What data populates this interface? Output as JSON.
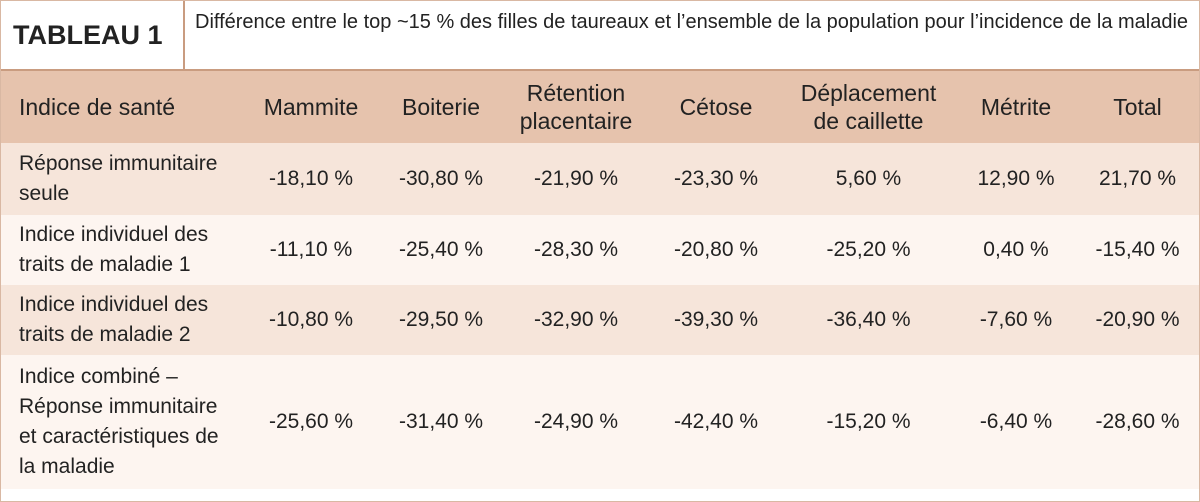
{
  "header": {
    "label": "TABLEAU 1",
    "title": "Différence entre le top ~15 % des filles de taureaux et l’ensemble de la population pour l’incidence de la maladie"
  },
  "table": {
    "columns": [
      "Indice de santé",
      "Mammite",
      "Boiterie",
      "Rétention placentaire",
      "Cétose",
      "Déplacement de caillette",
      "Métrite",
      "Total"
    ],
    "rows": [
      [
        "Réponse immunitaire seule",
        "-18,10 %",
        "-30,80 %",
        "-21,90 %",
        "-23,30 %",
        "5,60 %",
        "12,90 %",
        "21,70 %"
      ],
      [
        "Indice individuel des traits de maladie 1",
        "-11,10 %",
        "-25,40 %",
        "-28,30 %",
        "-20,80 %",
        "-25,20 %",
        "0,40 %",
        "-15,40 %"
      ],
      [
        "Indice individuel des traits de maladie 2",
        "-10,80 %",
        "-29,50 %",
        "-32,90 %",
        "-39,30 %",
        "-36,40 %",
        "-7,60 %",
        "-20,90 %"
      ],
      [
        "Indice combiné – Réponse immunitaire et caractéristiques de la maladie",
        "-25,60 %",
        "-31,40 %",
        "-24,90 %",
        "-42,40 %",
        "-15,20 %",
        "-6,40 %",
        "-28,60 %"
      ]
    ]
  }
}
